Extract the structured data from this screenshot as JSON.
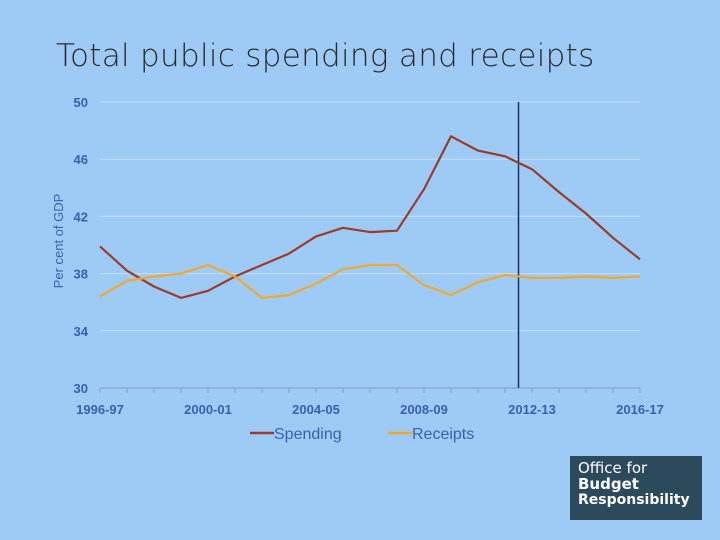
{
  "slide": {
    "title": "Total public spending and receipts"
  },
  "logo": {
    "line1": "Office for",
    "line2": "Budget",
    "line3": "Responsibility"
  },
  "colors": {
    "background": "#9ecbf6",
    "spending": "#9b3b2a",
    "receipts": "#f0a830",
    "forecast_line": "#1d2b66",
    "axis_text": "#3a5fb0",
    "logo_bg": "#2b4a5c"
  },
  "chart_data": {
    "type": "line",
    "title": "",
    "xlabel": "",
    "ylabel": "Per cent of GDP",
    "ylim": [
      30,
      50
    ],
    "yticks": [
      30,
      34,
      38,
      42,
      46,
      50
    ],
    "x": [
      "1996-97",
      "1997-98",
      "1998-99",
      "1999-00",
      "2000-01",
      "2001-02",
      "2002-03",
      "2003-04",
      "2004-05",
      "2005-06",
      "2006-07",
      "2007-08",
      "2008-09",
      "2009-10",
      "2010-11",
      "2011-12",
      "2012-13",
      "2013-14",
      "2014-15",
      "2015-16",
      "2016-17"
    ],
    "xtick_labels": [
      "1996-97",
      "2000-01",
      "2004-05",
      "2008-09",
      "2012-13",
      "2016-17"
    ],
    "forecast_divider_after": "2011-12",
    "grid": true,
    "legend_position": "bottom",
    "series": [
      {
        "name": "Spending",
        "color": "#9b3b2a",
        "values": [
          39.9,
          38.2,
          37.1,
          36.3,
          36.8,
          37.8,
          38.6,
          39.4,
          40.6,
          41.2,
          40.9,
          41.0,
          43.9,
          47.6,
          46.6,
          46.2,
          45.3,
          43.7,
          42.2,
          40.5,
          39.0
        ]
      },
      {
        "name": "Receipts",
        "color": "#f0a830",
        "values": [
          36.4,
          37.5,
          37.8,
          38.0,
          38.6,
          37.8,
          36.3,
          36.5,
          37.3,
          38.3,
          38.6,
          38.6,
          37.2,
          36.5,
          37.4,
          37.9,
          37.7,
          37.7,
          37.8,
          37.7,
          37.8
        ]
      }
    ]
  }
}
